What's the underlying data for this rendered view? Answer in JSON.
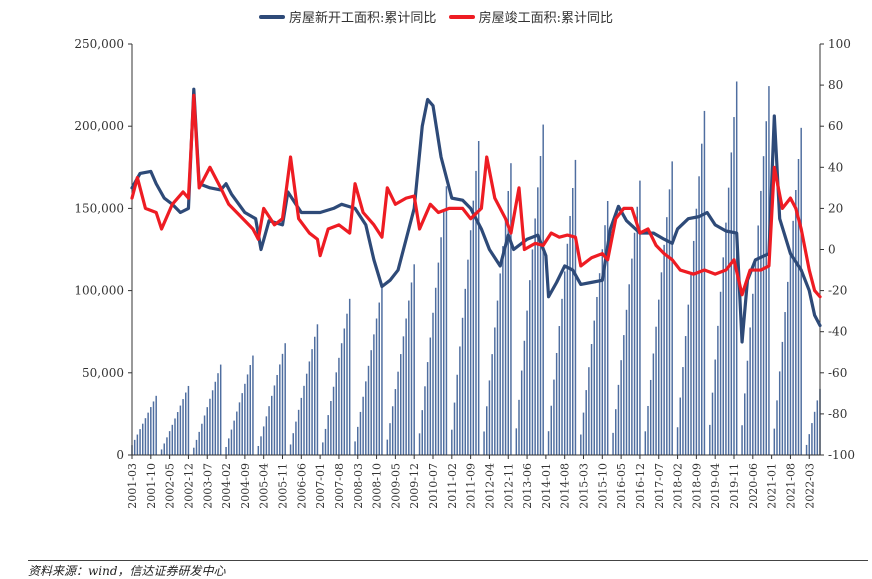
{
  "legend": {
    "series1": "房屋新开工面积:累计同比",
    "series2": "房屋竣工面积:累计同比"
  },
  "source": "资料来源：wind，信达证券研发中心",
  "chart_data": {
    "type": "line",
    "grid": false,
    "legend_position": "top-center",
    "x_start": "2001-03",
    "x_end": "2022-07",
    "x_tick_labels": [
      "2001-03",
      "2001-10",
      "2002-05",
      "2002-12",
      "2003-07",
      "2004-02",
      "2004-09",
      "2005-04",
      "2005-11",
      "2006-06",
      "2007-01",
      "2007-08",
      "2008-03",
      "2008-10",
      "2009-05",
      "2009-12",
      "2010-07",
      "2011-02",
      "2011-09",
      "2012-04",
      "2012-11",
      "2013-06",
      "2014-01",
      "2014-08",
      "2015-03",
      "2015-10",
      "2016-05",
      "2016-12",
      "2017-07",
      "2018-02",
      "2018-09",
      "2019-04",
      "2019-11",
      "2020-06",
      "2021-01",
      "2021-08",
      "2022-03"
    ],
    "y_left": {
      "min": 0,
      "max": 250000,
      "ticks": [
        "0",
        "50,000",
        "100,000",
        "150,000",
        "200,000",
        "250,000"
      ]
    },
    "y_right": {
      "min": -100,
      "max": 100,
      "ticks": [
        "-100",
        "-80",
        "-60",
        "-40",
        "-20",
        "0",
        "20",
        "40",
        "60",
        "80",
        "100"
      ]
    },
    "series": [
      {
        "name": "房屋新开工面积:累计同比",
        "axis": "right",
        "color": "#2e4a78",
        "points": [
          [
            "2001-03",
            30
          ],
          [
            "2001-06",
            37
          ],
          [
            "2001-10",
            38
          ],
          [
            "2001-12",
            32
          ],
          [
            "2002-03",
            25
          ],
          [
            "2002-06",
            22
          ],
          [
            "2002-09",
            18
          ],
          [
            "2002-12",
            20
          ],
          [
            "2003-02",
            78
          ],
          [
            "2003-04",
            32
          ],
          [
            "2003-08",
            30
          ],
          [
            "2003-12",
            29
          ],
          [
            "2004-02",
            32
          ],
          [
            "2004-04",
            27
          ],
          [
            "2004-09",
            18
          ],
          [
            "2005-01",
            15
          ],
          [
            "2005-03",
            0
          ],
          [
            "2005-06",
            14
          ],
          [
            "2005-11",
            12
          ],
          [
            "2006-01",
            28
          ],
          [
            "2006-06",
            18
          ],
          [
            "2007-01",
            18
          ],
          [
            "2007-06",
            20
          ],
          [
            "2007-09",
            22
          ],
          [
            "2008-02",
            20
          ],
          [
            "2008-06",
            12
          ],
          [
            "2008-09",
            -5
          ],
          [
            "2008-12",
            -18
          ],
          [
            "2009-03",
            -15
          ],
          [
            "2009-06",
            -10
          ],
          [
            "2009-09",
            5
          ],
          [
            "2009-12",
            20
          ],
          [
            "2010-03",
            60
          ],
          [
            "2010-05",
            73
          ],
          [
            "2010-07",
            70
          ],
          [
            "2010-10",
            45
          ],
          [
            "2011-02",
            25
          ],
          [
            "2011-06",
            24
          ],
          [
            "2011-09",
            20
          ],
          [
            "2012-01",
            10
          ],
          [
            "2012-04",
            0
          ],
          [
            "2012-08",
            -8
          ],
          [
            "2012-11",
            7
          ],
          [
            "2013-01",
            0
          ],
          [
            "2013-03",
            2
          ],
          [
            "2013-06",
            5
          ],
          [
            "2013-10",
            7
          ],
          [
            "2014-01",
            -3
          ],
          [
            "2014-02",
            -23
          ],
          [
            "2014-05",
            -16
          ],
          [
            "2014-08",
            -8
          ],
          [
            "2014-11",
            -10
          ],
          [
            "2015-02",
            -17
          ],
          [
            "2015-06",
            -16
          ],
          [
            "2015-10",
            -15
          ],
          [
            "2016-01",
            10
          ],
          [
            "2016-04",
            21
          ],
          [
            "2016-07",
            14
          ],
          [
            "2016-12",
            8
          ],
          [
            "2017-05",
            8
          ],
          [
            "2017-09",
            5
          ],
          [
            "2017-12",
            3
          ],
          [
            "2018-02",
            10
          ],
          [
            "2018-06",
            15
          ],
          [
            "2018-10",
            16
          ],
          [
            "2019-01",
            18
          ],
          [
            "2019-04",
            12
          ],
          [
            "2019-08",
            9
          ],
          [
            "2019-12",
            8
          ],
          [
            "2020-02",
            -45
          ],
          [
            "2020-04",
            -15
          ],
          [
            "2020-07",
            -5
          ],
          [
            "2020-12",
            -2
          ],
          [
            "2021-02",
            65
          ],
          [
            "2021-04",
            15
          ],
          [
            "2021-08",
            -2
          ],
          [
            "2021-12",
            -10
          ],
          [
            "2022-03",
            -20
          ],
          [
            "2022-05",
            -32
          ],
          [
            "2022-07",
            -37
          ]
        ]
      },
      {
        "name": "房屋竣工面积:累计同比",
        "axis": "right",
        "color": "#ee1c23",
        "points": [
          [
            "2001-03",
            25
          ],
          [
            "2001-05",
            35
          ],
          [
            "2001-08",
            20
          ],
          [
            "2001-12",
            18
          ],
          [
            "2002-02",
            10
          ],
          [
            "2002-06",
            22
          ],
          [
            "2002-10",
            28
          ],
          [
            "2002-12",
            25
          ],
          [
            "2003-02",
            75
          ],
          [
            "2003-04",
            30
          ],
          [
            "2003-08",
            40
          ],
          [
            "2003-12",
            30
          ],
          [
            "2004-03",
            22
          ],
          [
            "2004-06",
            18
          ],
          [
            "2004-09",
            14
          ],
          [
            "2004-12",
            10
          ],
          [
            "2005-02",
            5
          ],
          [
            "2005-04",
            20
          ],
          [
            "2005-08",
            12
          ],
          [
            "2005-11",
            15
          ],
          [
            "2006-02",
            45
          ],
          [
            "2006-05",
            15
          ],
          [
            "2006-09",
            8
          ],
          [
            "2006-12",
            5
          ],
          [
            "2007-01",
            -3
          ],
          [
            "2007-04",
            10
          ],
          [
            "2007-08",
            12
          ],
          [
            "2007-12",
            8
          ],
          [
            "2008-02",
            32
          ],
          [
            "2008-05",
            18
          ],
          [
            "2008-09",
            12
          ],
          [
            "2008-12",
            6
          ],
          [
            "2009-02",
            30
          ],
          [
            "2009-05",
            22
          ],
          [
            "2009-09",
            25
          ],
          [
            "2009-12",
            26
          ],
          [
            "2010-02",
            10
          ],
          [
            "2010-06",
            22
          ],
          [
            "2010-09",
            18
          ],
          [
            "2011-01",
            20
          ],
          [
            "2011-06",
            20
          ],
          [
            "2011-09",
            15
          ],
          [
            "2012-01",
            20
          ],
          [
            "2012-03",
            45
          ],
          [
            "2012-06",
            25
          ],
          [
            "2012-10",
            15
          ],
          [
            "2012-12",
            8
          ],
          [
            "2013-03",
            30
          ],
          [
            "2013-05",
            0
          ],
          [
            "2013-09",
            3
          ],
          [
            "2013-12",
            2
          ],
          [
            "2014-03",
            8
          ],
          [
            "2014-06",
            6
          ],
          [
            "2014-09",
            7
          ],
          [
            "2014-12",
            6
          ],
          [
            "2015-02",
            -8
          ],
          [
            "2015-06",
            -4
          ],
          [
            "2015-10",
            -2
          ],
          [
            "2015-12",
            -5
          ],
          [
            "2016-03",
            15
          ],
          [
            "2016-06",
            20
          ],
          [
            "2016-09",
            20
          ],
          [
            "2016-12",
            8
          ],
          [
            "2017-03",
            10
          ],
          [
            "2017-06",
            2
          ],
          [
            "2017-09",
            -2
          ],
          [
            "2017-12",
            -5
          ],
          [
            "2018-03",
            -10
          ],
          [
            "2018-08",
            -12
          ],
          [
            "2018-12",
            -10
          ],
          [
            "2019-04",
            -12
          ],
          [
            "2019-08",
            -10
          ],
          [
            "2019-11",
            -5
          ],
          [
            "2020-02",
            -22
          ],
          [
            "2020-05",
            -10
          ],
          [
            "2020-09",
            -10
          ],
          [
            "2020-12",
            -8
          ],
          [
            "2021-02",
            40
          ],
          [
            "2021-05",
            20
          ],
          [
            "2021-08",
            25
          ],
          [
            "2021-10",
            20
          ],
          [
            "2021-12",
            10
          ],
          [
            "2022-03",
            -10
          ],
          [
            "2022-05",
            -20
          ],
          [
            "2022-07",
            -23
          ]
        ]
      },
      {
        "name": "",
        "type": "bar",
        "axis": "left",
        "color": "#4f6ea0",
        "description_values": "monthly cumulative area",
        "yearly_peaks": [
          [
            "2001",
            36000
          ],
          [
            "2002",
            42000
          ],
          [
            "2003",
            55000
          ],
          [
            "2004",
            60500
          ],
          [
            "2005",
            68000
          ],
          [
            "2006",
            79500
          ],
          [
            "2007",
            95000
          ],
          [
            "2008",
            102500
          ],
          [
            "2009",
            116000
          ],
          [
            "2010",
            163500
          ],
          [
            "2011",
            191000
          ],
          [
            "2012",
            177500
          ],
          [
            "2013",
            201000
          ],
          [
            "2014",
            179500
          ],
          [
            "2015",
            154500
          ],
          [
            "2016",
            166900
          ],
          [
            "2017",
            178600
          ],
          [
            "2018",
            209300
          ],
          [
            "2019",
            227200
          ],
          [
            "2020",
            224400
          ],
          [
            "2021",
            199000
          ],
          [
            "2022",
            76000
          ]
        ]
      }
    ]
  }
}
